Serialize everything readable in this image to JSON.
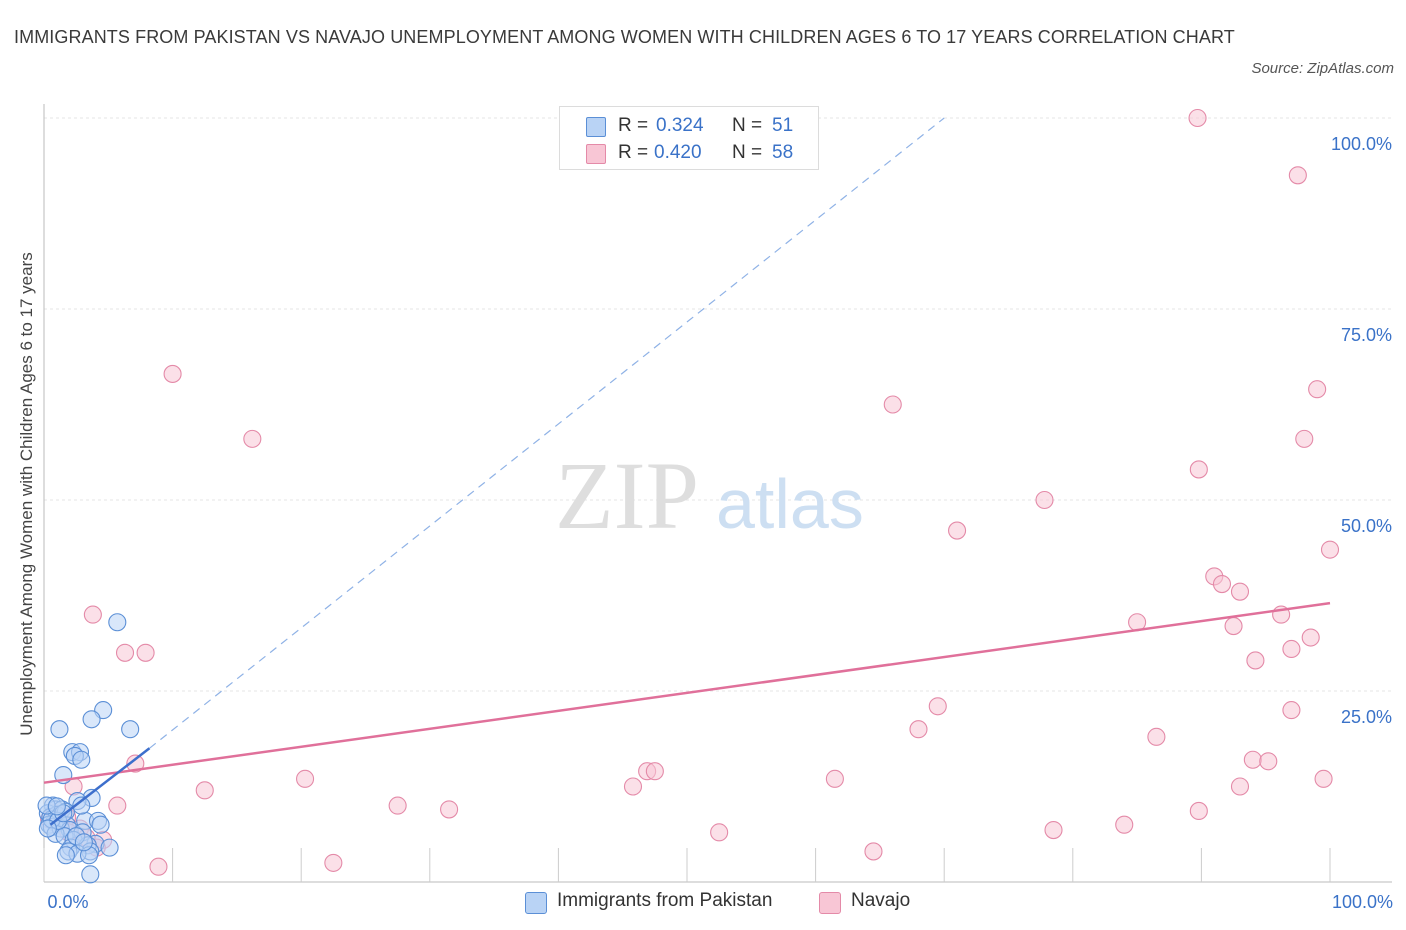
{
  "title": "IMMIGRANTS FROM PAKISTAN VS NAVAJO UNEMPLOYMENT AMONG WOMEN WITH CHILDREN AGES 6 TO 17 YEARS CORRELATION CHART",
  "source": "Source: ZipAtlas.com",
  "watermark": {
    "zip": "ZIP",
    "atlas": "atlas"
  },
  "legend": {
    "r_label": "R =",
    "n_label": "N =",
    "series": [
      {
        "name": "Immigrants from Pakistan",
        "r": "0.324",
        "n": "51"
      },
      {
        "name": "Navajo",
        "r": "0.420",
        "n": "58"
      }
    ]
  },
  "colors": {
    "pakistan_fill": "#b9d3f5",
    "pakistan_stroke": "#5b8fd6",
    "pakistan_line": "#3d6fcc",
    "navajo_fill": "#f8c6d5",
    "navajo_stroke": "#e48aa8",
    "navajo_line": "#e0709a",
    "tick_text": "#3a72c8",
    "grid": "#e6e6e6"
  },
  "chart_data": {
    "type": "scatter",
    "xlabel": "",
    "ylabel": "Unemployment Among Women with Children Ages 6 to 17 years",
    "xlim": [
      0,
      100
    ],
    "ylim": [
      0,
      100
    ],
    "x_tick_labels": {
      "left": "0.0%",
      "right": "100.0%"
    },
    "y_ticks": [
      {
        "value": 25,
        "label": "25.0%"
      },
      {
        "value": 50,
        "label": "50.0%"
      },
      {
        "value": 75,
        "label": "75.0%"
      },
      {
        "value": 100,
        "label": "100.0%"
      }
    ],
    "series": [
      {
        "name": "Immigrants from Pakistan",
        "trend": {
          "x": [
            0.5,
            8.2
          ],
          "y": [
            7.5,
            17.5
          ]
        },
        "trend_extension": {
          "x": [
            8.2,
            70
          ],
          "y": [
            17.5,
            100
          ]
        },
        "points": [
          {
            "x": 5.7,
            "y": 34.0
          },
          {
            "x": 4.6,
            "y": 22.5
          },
          {
            "x": 6.7,
            "y": 20.0
          },
          {
            "x": 3.7,
            "y": 21.3
          },
          {
            "x": 1.2,
            "y": 20.0
          },
          {
            "x": 2.2,
            "y": 17.0
          },
          {
            "x": 2.8,
            "y": 17.0
          },
          {
            "x": 2.4,
            "y": 16.5
          },
          {
            "x": 2.9,
            "y": 16.0
          },
          {
            "x": 1.5,
            "y": 14.0
          },
          {
            "x": 3.7,
            "y": 11.0
          },
          {
            "x": 2.6,
            "y": 10.6
          },
          {
            "x": 0.7,
            "y": 10.0
          },
          {
            "x": 0.9,
            "y": 9.5
          },
          {
            "x": 1.4,
            "y": 9.5
          },
          {
            "x": 0.3,
            "y": 9.0
          },
          {
            "x": 0.5,
            "y": 8.5
          },
          {
            "x": 1.0,
            "y": 8.8
          },
          {
            "x": 1.7,
            "y": 9.2
          },
          {
            "x": 3.2,
            "y": 8.0
          },
          {
            "x": 4.2,
            "y": 8.0
          },
          {
            "x": 0.8,
            "y": 7.8
          },
          {
            "x": 0.4,
            "y": 7.5
          },
          {
            "x": 1.8,
            "y": 7.4
          },
          {
            "x": 0.6,
            "y": 7.2
          },
          {
            "x": 1.3,
            "y": 7.0
          },
          {
            "x": 2.0,
            "y": 6.8
          },
          {
            "x": 3.0,
            "y": 6.5
          },
          {
            "x": 0.9,
            "y": 6.3
          },
          {
            "x": 1.6,
            "y": 6.0
          },
          {
            "x": 2.3,
            "y": 5.5
          },
          {
            "x": 4.0,
            "y": 5.0
          },
          {
            "x": 3.4,
            "y": 4.8
          },
          {
            "x": 2.1,
            "y": 4.5
          },
          {
            "x": 5.1,
            "y": 4.5
          },
          {
            "x": 1.9,
            "y": 4.0
          },
          {
            "x": 3.6,
            "y": 4.0
          },
          {
            "x": 2.6,
            "y": 3.7
          },
          {
            "x": 1.7,
            "y": 3.5
          },
          {
            "x": 3.5,
            "y": 3.5
          },
          {
            "x": 3.6,
            "y": 1.0
          },
          {
            "x": 0.6,
            "y": 8.2
          },
          {
            "x": 2.9,
            "y": 10.0
          },
          {
            "x": 1.1,
            "y": 8.0
          },
          {
            "x": 0.2,
            "y": 10.0
          },
          {
            "x": 2.5,
            "y": 6.0
          },
          {
            "x": 1.5,
            "y": 9.0
          },
          {
            "x": 4.4,
            "y": 7.5
          },
          {
            "x": 0.3,
            "y": 7.0
          },
          {
            "x": 1.0,
            "y": 9.9
          },
          {
            "x": 3.1,
            "y": 5.2
          }
        ]
      },
      {
        "name": "Navajo",
        "trend": {
          "x": [
            0,
            100
          ],
          "y": [
            13.0,
            36.5
          ]
        },
        "points": [
          {
            "x": 89.7,
            "y": 100.0
          },
          {
            "x": 97.5,
            "y": 92.5
          },
          {
            "x": 10.0,
            "y": 66.5
          },
          {
            "x": 66.0,
            "y": 62.5
          },
          {
            "x": 99.0,
            "y": 64.5
          },
          {
            "x": 16.2,
            "y": 58.0
          },
          {
            "x": 98.0,
            "y": 58.0
          },
          {
            "x": 89.8,
            "y": 54.0
          },
          {
            "x": 77.8,
            "y": 50.0
          },
          {
            "x": 71.0,
            "y": 46.0
          },
          {
            "x": 100.0,
            "y": 43.5
          },
          {
            "x": 91.0,
            "y": 40.0
          },
          {
            "x": 91.6,
            "y": 39.0
          },
          {
            "x": 93.0,
            "y": 38.0
          },
          {
            "x": 96.2,
            "y": 35.0
          },
          {
            "x": 85.0,
            "y": 34.0
          },
          {
            "x": 92.5,
            "y": 33.5
          },
          {
            "x": 98.5,
            "y": 32.0
          },
          {
            "x": 3.8,
            "y": 35.0
          },
          {
            "x": 6.3,
            "y": 30.0
          },
          {
            "x": 7.9,
            "y": 30.0
          },
          {
            "x": 97.0,
            "y": 30.5
          },
          {
            "x": 94.2,
            "y": 29.0
          },
          {
            "x": 69.5,
            "y": 23.0
          },
          {
            "x": 97.0,
            "y": 22.5
          },
          {
            "x": 68.0,
            "y": 20.0
          },
          {
            "x": 86.5,
            "y": 19.0
          },
          {
            "x": 94.0,
            "y": 16.0
          },
          {
            "x": 95.2,
            "y": 15.8
          },
          {
            "x": 7.1,
            "y": 15.5
          },
          {
            "x": 46.9,
            "y": 14.5
          },
          {
            "x": 47.5,
            "y": 14.5
          },
          {
            "x": 20.3,
            "y": 13.5
          },
          {
            "x": 61.5,
            "y": 13.5
          },
          {
            "x": 99.5,
            "y": 13.5
          },
          {
            "x": 2.3,
            "y": 12.5
          },
          {
            "x": 45.8,
            "y": 12.5
          },
          {
            "x": 93.0,
            "y": 12.5
          },
          {
            "x": 12.5,
            "y": 12.0
          },
          {
            "x": 27.5,
            "y": 10.0
          },
          {
            "x": 31.5,
            "y": 9.5
          },
          {
            "x": 5.7,
            "y": 10.0
          },
          {
            "x": 89.8,
            "y": 9.3
          },
          {
            "x": 84.0,
            "y": 7.5
          },
          {
            "x": 52.5,
            "y": 6.5
          },
          {
            "x": 78.5,
            "y": 6.8
          },
          {
            "x": 4.6,
            "y": 5.5
          },
          {
            "x": 4.1,
            "y": 4.5
          },
          {
            "x": 64.5,
            "y": 4.0
          },
          {
            "x": 22.5,
            "y": 2.5
          },
          {
            "x": 8.9,
            "y": 2.0
          },
          {
            "x": 1.8,
            "y": 8.5
          },
          {
            "x": 0.8,
            "y": 9.0
          },
          {
            "x": 1.3,
            "y": 7.8
          },
          {
            "x": 2.8,
            "y": 7.0
          },
          {
            "x": 0.4,
            "y": 8.2
          },
          {
            "x": 3.3,
            "y": 5.8
          },
          {
            "x": 1.9,
            "y": 6.5
          }
        ]
      }
    ]
  }
}
